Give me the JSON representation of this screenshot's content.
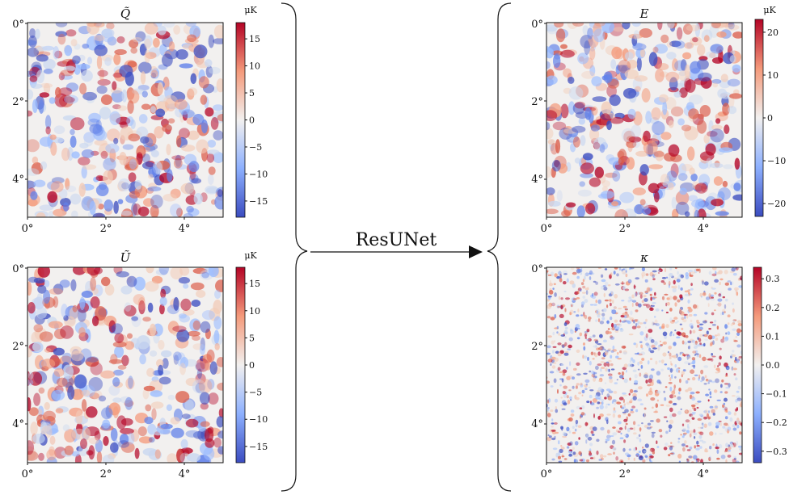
{
  "panels": [
    {
      "id": "q",
      "title": "Q̃",
      "colorbar": {
        "unit": "μK",
        "range": [
          -18,
          18
        ],
        "ticks": [
          "15",
          "10",
          "5",
          "0",
          "−5",
          "−10",
          "−15"
        ],
        "tick_values": [
          15,
          10,
          5,
          0,
          -5,
          -10,
          -15
        ]
      },
      "y_ticks": [
        "0°",
        "2°",
        "4°"
      ],
      "x_ticks": [
        "0°",
        "2°",
        "4°"
      ]
    },
    {
      "id": "u",
      "title": "Ũ",
      "colorbar": {
        "unit": "μK",
        "range": [
          -18,
          18
        ],
        "ticks": [
          "15",
          "10",
          "5",
          "0",
          "−5",
          "−10",
          "−15"
        ],
        "tick_values": [
          15,
          10,
          5,
          0,
          -5,
          -10,
          -15
        ]
      },
      "y_ticks": [
        "0°",
        "2°",
        "4°"
      ],
      "x_ticks": [
        "0°",
        "2°",
        "4°"
      ]
    },
    {
      "id": "e",
      "title": "E",
      "colorbar": {
        "unit": "μK",
        "range": [
          -23,
          23
        ],
        "ticks": [
          "20",
          "10",
          "0",
          "−10",
          "−20"
        ],
        "tick_values": [
          20,
          10,
          0,
          -10,
          -20
        ]
      },
      "y_ticks": [
        "0°",
        "2°",
        "4°"
      ],
      "x_ticks": [
        "0°",
        "2°",
        "4°"
      ]
    },
    {
      "id": "k",
      "title": "κ",
      "colorbar": {
        "unit": "",
        "range": [
          -0.34,
          0.34
        ],
        "ticks": [
          "0.3",
          "0.2",
          "0.1",
          "0.0",
          "−0.1",
          "−0.2",
          "−0.3"
        ],
        "tick_values": [
          0.3,
          0.2,
          0.1,
          0.0,
          -0.1,
          -0.2,
          -0.3
        ]
      },
      "y_ticks": [
        "0°",
        "2°",
        "4°"
      ],
      "x_ticks": [
        "0°",
        "2°",
        "4°"
      ]
    }
  ],
  "arrow_label": "ResUNet",
  "colormap": {
    "low": "#3b4cc0",
    "mid": "#f2f0ef",
    "high": "#b40426"
  }
}
